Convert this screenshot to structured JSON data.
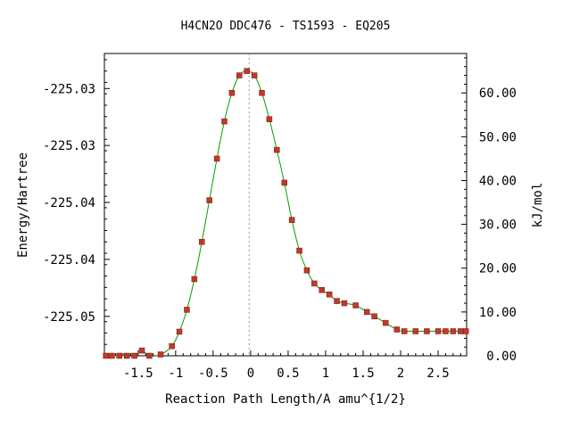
{
  "chart_data": {
    "type": "line",
    "title": "H4CN2O   DDC476 - TS1593 - EQ205",
    "xlabel": "Reaction Path Length/A amu^{1/2}",
    "ylabel": "Energy/Hartree",
    "y2label": "kJ/mol",
    "xlim": [
      -1.95,
      2.88
    ],
    "ylim_kjmol": [
      0,
      69
    ],
    "x_ticks": [
      -1.5,
      -1,
      -0.5,
      0,
      0.5,
      1,
      1.5,
      2,
      2.5
    ],
    "x_tick_labels": [
      "-1.5",
      "-1",
      "-0.5",
      "0",
      "0.5",
      "1",
      "1.5",
      "2",
      "2.5"
    ],
    "y_left_tick_labels": [
      "-225.03",
      "-225.03",
      "-225.04",
      "-225.04",
      "-225.05"
    ],
    "y_left_tick_positions_kjmol": [
      61,
      48,
      35,
      22,
      9
    ],
    "y_right_ticks": [
      0,
      10,
      20,
      30,
      40,
      50,
      60
    ],
    "y_right_tick_labels": [
      "0.00",
      "10.00",
      "20.00",
      "30.00",
      "40.00",
      "50.00",
      "60.00"
    ],
    "ts_marker_x": -0.02,
    "grid": false,
    "line_color": "#00a000",
    "marker_color": "#c0392b",
    "points": [
      [
        -1.93,
        0.0
      ],
      [
        -1.85,
        0.0
      ],
      [
        -1.75,
        0.0
      ],
      [
        -1.65,
        0.0
      ],
      [
        -1.55,
        0.0
      ],
      [
        -1.45,
        1.2
      ],
      [
        -1.35,
        0.0
      ],
      [
        -1.2,
        0.3
      ],
      [
        -1.05,
        2.2
      ],
      [
        -0.95,
        5.5
      ],
      [
        -0.85,
        10.5
      ],
      [
        -0.75,
        17.5
      ],
      [
        -0.65,
        26.0
      ],
      [
        -0.55,
        35.5
      ],
      [
        -0.45,
        45.0
      ],
      [
        -0.35,
        53.5
      ],
      [
        -0.25,
        60.0
      ],
      [
        -0.15,
        64.0
      ],
      [
        -0.05,
        65.0
      ],
      [
        0.05,
        64.0
      ],
      [
        0.15,
        60.0
      ],
      [
        0.25,
        54.0
      ],
      [
        0.35,
        47.0
      ],
      [
        0.45,
        39.5
      ],
      [
        0.55,
        31.0
      ],
      [
        0.65,
        24.0
      ],
      [
        0.75,
        19.5
      ],
      [
        0.85,
        16.5
      ],
      [
        0.95,
        15.0
      ],
      [
        1.05,
        14.0
      ],
      [
        1.15,
        12.5
      ],
      [
        1.25,
        12.0
      ],
      [
        1.4,
        11.5
      ],
      [
        1.55,
        10.0
      ],
      [
        1.65,
        9.0
      ],
      [
        1.8,
        7.5
      ],
      [
        1.95,
        6.0
      ],
      [
        2.05,
        5.6
      ],
      [
        2.2,
        5.6
      ],
      [
        2.35,
        5.6
      ],
      [
        2.5,
        5.6
      ],
      [
        2.6,
        5.6
      ],
      [
        2.7,
        5.6
      ],
      [
        2.8,
        5.6
      ],
      [
        2.87,
        5.6
      ]
    ]
  }
}
